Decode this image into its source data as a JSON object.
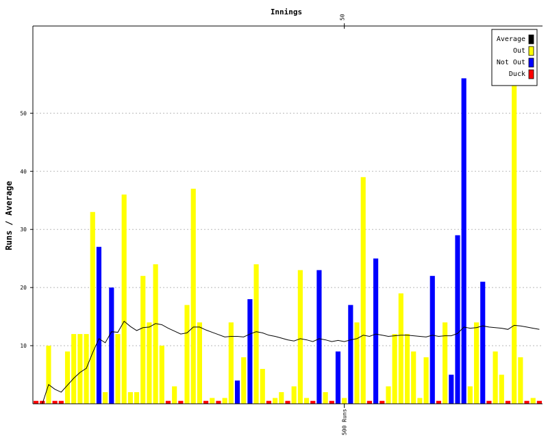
{
  "chart_data": {
    "type": "bar",
    "title": "Innings",
    "ylabel": "Runs / Average",
    "ylim": [
      0,
      65
    ],
    "y_ticks": [
      "10",
      "20",
      "30",
      "40",
      "50"
    ],
    "grid": true,
    "top_axis": {
      "tick_value": 50,
      "label": "50"
    },
    "bottom_marker": {
      "value": 50,
      "label": "500 Runs"
    },
    "legend": {
      "placement": "top-right",
      "items": [
        {
          "label": "Average",
          "color": "#000000"
        },
        {
          "label": "Out",
          "color": "#ffff00"
        },
        {
          "label": "Not Out",
          "color": "#0000ff"
        },
        {
          "label": "Duck",
          "color": "#ff0000"
        }
      ]
    },
    "duck_value": 0.5,
    "innings": [
      {
        "runs": 0,
        "kind": "duck",
        "average": 0
      },
      {
        "runs": 0,
        "kind": "duck",
        "average": 0
      },
      {
        "runs": 10,
        "kind": "out",
        "average": 3.3
      },
      {
        "runs": 0,
        "kind": "duck",
        "average": 2.5
      },
      {
        "runs": 0,
        "kind": "duck",
        "average": 2.0
      },
      {
        "runs": 9,
        "kind": "out",
        "average": 3.2
      },
      {
        "runs": 12,
        "kind": "out",
        "average": 4.4
      },
      {
        "runs": 12,
        "kind": "out",
        "average": 5.4
      },
      {
        "runs": 12,
        "kind": "out",
        "average": 6.1
      },
      {
        "runs": 33,
        "kind": "out",
        "average": 8.8
      },
      {
        "runs": 27,
        "kind": "notout",
        "average": 11.2
      },
      {
        "runs": 2,
        "kind": "out",
        "average": 10.5
      },
      {
        "runs": 20,
        "kind": "notout",
        "average": 12.4
      },
      {
        "runs": 12,
        "kind": "out",
        "average": 12.3
      },
      {
        "runs": 36,
        "kind": "out",
        "average": 14.2
      },
      {
        "runs": 2,
        "kind": "out",
        "average": 13.3
      },
      {
        "runs": 2,
        "kind": "out",
        "average": 12.6
      },
      {
        "runs": 22,
        "kind": "out",
        "average": 13.1
      },
      {
        "runs": 14,
        "kind": "out",
        "average": 13.2
      },
      {
        "runs": 24,
        "kind": "out",
        "average": 13.8
      },
      {
        "runs": 10,
        "kind": "out",
        "average": 13.6
      },
      {
        "runs": 0,
        "kind": "duck",
        "average": 13.0
      },
      {
        "runs": 3,
        "kind": "out",
        "average": 12.5
      },
      {
        "runs": 0,
        "kind": "duck",
        "average": 12.0
      },
      {
        "runs": 17,
        "kind": "out",
        "average": 12.2
      },
      {
        "runs": 37,
        "kind": "out",
        "average": 13.2
      },
      {
        "runs": 14,
        "kind": "out",
        "average": 13.2
      },
      {
        "runs": 0,
        "kind": "duck",
        "average": 12.7
      },
      {
        "runs": 1,
        "kind": "out",
        "average": 12.3
      },
      {
        "runs": 0,
        "kind": "duck",
        "average": 11.9
      },
      {
        "runs": 1,
        "kind": "out",
        "average": 11.5
      },
      {
        "runs": 14,
        "kind": "out",
        "average": 11.6
      },
      {
        "runs": 4,
        "kind": "notout",
        "average": 11.6
      },
      {
        "runs": 8,
        "kind": "out",
        "average": 11.5
      },
      {
        "runs": 18,
        "kind": "notout",
        "average": 12.0
      },
      {
        "runs": 24,
        "kind": "out",
        "average": 12.4
      },
      {
        "runs": 6,
        "kind": "out",
        "average": 12.2
      },
      {
        "runs": 0,
        "kind": "duck",
        "average": 11.8
      },
      {
        "runs": 1,
        "kind": "out",
        "average": 11.6
      },
      {
        "runs": 2,
        "kind": "out",
        "average": 11.3
      },
      {
        "runs": 0,
        "kind": "duck",
        "average": 11.0
      },
      {
        "runs": 3,
        "kind": "out",
        "average": 10.8
      },
      {
        "runs": 23,
        "kind": "out",
        "average": 11.2
      },
      {
        "runs": 1,
        "kind": "out",
        "average": 11.0
      },
      {
        "runs": 0,
        "kind": "duck",
        "average": 10.7
      },
      {
        "runs": 23,
        "kind": "notout",
        "average": 11.2
      },
      {
        "runs": 2,
        "kind": "out",
        "average": 11.0
      },
      {
        "runs": 0,
        "kind": "duck",
        "average": 10.7
      },
      {
        "runs": 9,
        "kind": "notout",
        "average": 10.9
      },
      {
        "runs": 1,
        "kind": "out",
        "average": 10.7
      },
      {
        "runs": 17,
        "kind": "notout",
        "average": 11.0
      },
      {
        "runs": 14,
        "kind": "out",
        "average": 11.2
      },
      {
        "runs": 39,
        "kind": "out",
        "average": 11.8
      },
      {
        "runs": 0,
        "kind": "duck",
        "average": 11.6
      },
      {
        "runs": 25,
        "kind": "notout",
        "average": 12.0
      },
      {
        "runs": 0,
        "kind": "duck",
        "average": 11.8
      },
      {
        "runs": 3,
        "kind": "out",
        "average": 11.6
      },
      {
        "runs": 12,
        "kind": "out",
        "average": 11.7
      },
      {
        "runs": 19,
        "kind": "out",
        "average": 11.8
      },
      {
        "runs": 12,
        "kind": "out",
        "average": 11.8
      },
      {
        "runs": 9,
        "kind": "out",
        "average": 11.7
      },
      {
        "runs": 1,
        "kind": "out",
        "average": 11.6
      },
      {
        "runs": 8,
        "kind": "out",
        "average": 11.5
      },
      {
        "runs": 22,
        "kind": "notout",
        "average": 11.8
      },
      {
        "runs": 0,
        "kind": "duck",
        "average": 11.6
      },
      {
        "runs": 14,
        "kind": "out",
        "average": 11.7
      },
      {
        "runs": 5,
        "kind": "notout",
        "average": 11.7
      },
      {
        "runs": 29,
        "kind": "notout",
        "average": 12.1
      },
      {
        "runs": 56,
        "kind": "notout",
        "average": 13.2
      },
      {
        "runs": 3,
        "kind": "out",
        "average": 13.0
      },
      {
        "runs": 14,
        "kind": "out",
        "average": 13.1
      },
      {
        "runs": 21,
        "kind": "notout",
        "average": 13.4
      },
      {
        "runs": 0,
        "kind": "duck",
        "average": 13.2
      },
      {
        "runs": 9,
        "kind": "out",
        "average": 13.1
      },
      {
        "runs": 5,
        "kind": "out",
        "average": 13.0
      },
      {
        "runs": 0,
        "kind": "duck",
        "average": 12.8
      },
      {
        "runs": 55,
        "kind": "out",
        "average": 13.5
      },
      {
        "runs": 8,
        "kind": "out",
        "average": 13.4
      },
      {
        "runs": 0,
        "kind": "duck",
        "average": 13.2
      },
      {
        "runs": 1,
        "kind": "out",
        "average": 13.0
      },
      {
        "runs": 0,
        "kind": "duck",
        "average": 12.8
      }
    ]
  }
}
